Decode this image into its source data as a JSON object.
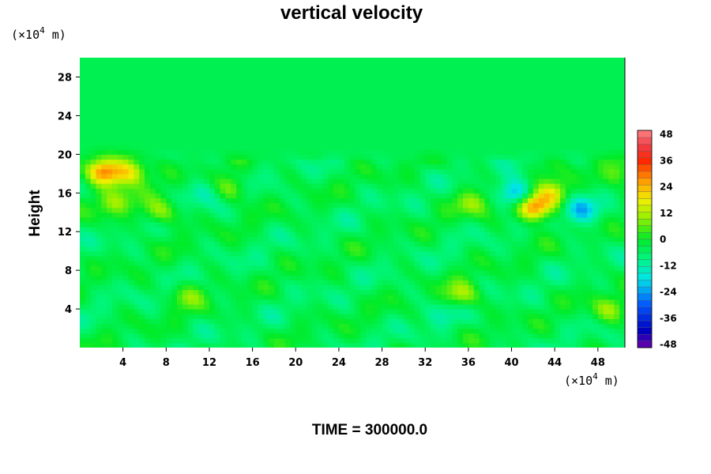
{
  "chart_data": {
    "type": "heatmap",
    "title": "vertical velocity",
    "ylabel": "Height",
    "xlabel": "",
    "x_unit": {
      "prefix": "(×10",
      "exp": "4",
      "suffix": " m)"
    },
    "y_unit": {
      "prefix": "(×10",
      "exp": "4",
      "suffix": " m)"
    },
    "xlim": [
      0,
      50.5
    ],
    "ylim": [
      0,
      30
    ],
    "x_ticks": [
      4,
      8,
      12,
      16,
      20,
      24,
      28,
      32,
      36,
      40,
      44,
      48
    ],
    "y_ticks": [
      4,
      8,
      12,
      16,
      20,
      24,
      28
    ],
    "x_tick_labels": [
      "4",
      "8",
      "12",
      "16",
      "20",
      "24",
      "28",
      "32",
      "36",
      "40",
      "44",
      "48"
    ],
    "y_tick_labels": [
      "4",
      "8",
      "12",
      "16",
      "20",
      "24",
      "28"
    ],
    "colorbar": {
      "min": -48,
      "max": 48,
      "ticks": [
        48,
        36,
        24,
        12,
        0,
        -12,
        -24,
        -36,
        -48
      ],
      "tick_labels": [
        "48",
        "36",
        "24",
        "12",
        "0",
        "-12",
        "-24",
        "-36",
        "-48"
      ],
      "colormap": "rainbow (purple-blue-cyan-green-yellow-orange-red-pink)",
      "levels": 32
    },
    "field_features": [
      {
        "x": 2.2,
        "y": 18.3,
        "value": 26
      },
      {
        "x": 4.6,
        "y": 18.2,
        "value": 20
      },
      {
        "x": 3.2,
        "y": 15.0,
        "value": 10
      },
      {
        "x": 7.5,
        "y": 14.0,
        "value": 10
      },
      {
        "x": 11.8,
        "y": 16.2,
        "value": -12
      },
      {
        "x": 14.0,
        "y": 16.5,
        "value": 8
      },
      {
        "x": 35.5,
        "y": 5.5,
        "value": 10
      },
      {
        "x": 36.5,
        "y": 15.0,
        "value": 8
      },
      {
        "x": 40.5,
        "y": 16.0,
        "value": -28
      },
      {
        "x": 42.0,
        "y": 14.5,
        "value": 30
      },
      {
        "x": 43.8,
        "y": 16.0,
        "value": 18
      },
      {
        "x": 46.3,
        "y": 14.2,
        "value": -22
      },
      {
        "x": 50.0,
        "y": 18.0,
        "value": 8
      },
      {
        "x": 49.0,
        "y": 4.0,
        "value": 8
      },
      {
        "x": 33.2,
        "y": 3.5,
        "value": -10
      },
      {
        "x": 10.0,
        "y": 5.5,
        "value": 6
      }
    ],
    "background_value": -4,
    "grid": false,
    "legend": "colorbar-right"
  },
  "footer": {
    "time_label": "TIME = 300000.0"
  }
}
